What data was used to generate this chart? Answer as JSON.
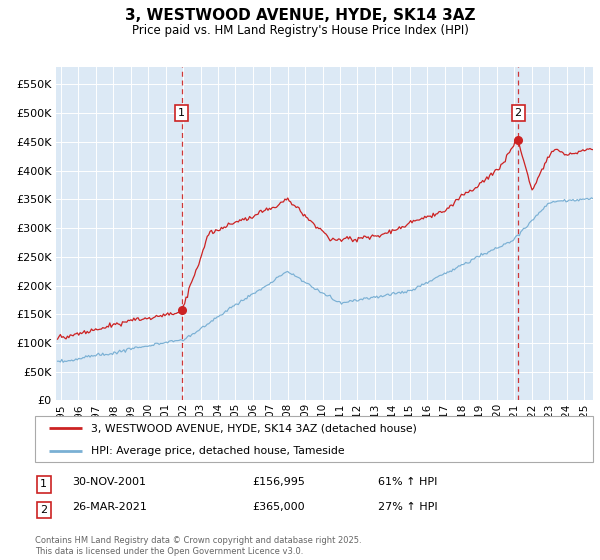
{
  "title": "3, WESTWOOD AVENUE, HYDE, SK14 3AZ",
  "subtitle": "Price paid vs. HM Land Registry's House Price Index (HPI)",
  "plot_background": "#dce9f5",
  "yticks": [
    0,
    50000,
    100000,
    150000,
    200000,
    250000,
    300000,
    350000,
    400000,
    450000,
    500000,
    550000
  ],
  "ylim": [
    0,
    580000
  ],
  "xlim_start": 1994.7,
  "xlim_end": 2025.5,
  "xticks": [
    1995,
    1996,
    1997,
    1998,
    1999,
    2000,
    2001,
    2002,
    2003,
    2004,
    2005,
    2006,
    2007,
    2008,
    2009,
    2010,
    2011,
    2012,
    2013,
    2014,
    2015,
    2016,
    2017,
    2018,
    2019,
    2020,
    2021,
    2022,
    2023,
    2024,
    2025
  ],
  "red_line_color": "#cc2222",
  "blue_line_color": "#7ab0d4",
  "annotation_border_color": "#cc2222",
  "dashed_line_color": "#cc2222",
  "transaction1_date": 2001.92,
  "transaction1_label": "1",
  "transaction2_date": 2021.22,
  "transaction2_label": "2",
  "legend_label_red": "3, WESTWOOD AVENUE, HYDE, SK14 3AZ (detached house)",
  "legend_label_blue": "HPI: Average price, detached house, Tameside",
  "footnote1_label": "1",
  "footnote1_date": "30-NOV-2001",
  "footnote1_price": "£156,995",
  "footnote1_hpi": "61% ↑ HPI",
  "footnote2_label": "2",
  "footnote2_date": "26-MAR-2021",
  "footnote2_price": "£365,000",
  "footnote2_hpi": "27% ↑ HPI",
  "copyright": "Contains HM Land Registry data © Crown copyright and database right 2025.\nThis data is licensed under the Open Government Licence v3.0."
}
